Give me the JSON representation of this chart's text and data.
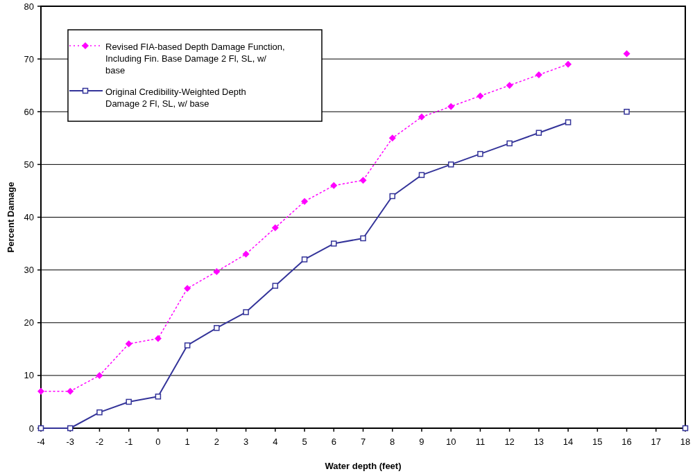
{
  "chart_data": {
    "type": "line",
    "xlabel": "Water depth (feet)",
    "ylabel": "Percent Damage",
    "x": [
      -4,
      -3,
      -2,
      -1,
      0,
      1,
      2,
      3,
      4,
      5,
      6,
      7,
      8,
      9,
      10,
      11,
      12,
      13,
      14,
      15,
      16,
      17,
      18
    ],
    "xlim": [
      -4,
      18
    ],
    "xticks": [
      -4,
      -3,
      -2,
      -1,
      0,
      1,
      2,
      3,
      4,
      5,
      6,
      7,
      8,
      9,
      10,
      11,
      12,
      13,
      14,
      15,
      16,
      17,
      18
    ],
    "ylim": [
      0,
      80
    ],
    "yticks": [
      0,
      10,
      20,
      30,
      40,
      50,
      60,
      70,
      80
    ],
    "grid": "y",
    "legend": "top left",
    "series": [
      {
        "name": "Revised FIA-based Depth Damage Function, Including Fin. Base Damage 2 Fl, SL, w/ base",
        "color": "#ff00ff",
        "marker": "diamond",
        "line_style": "dotted",
        "values": [
          7,
          7,
          10,
          16,
          17,
          26.5,
          29.7,
          33,
          38,
          43,
          46,
          47,
          55,
          59,
          61,
          63,
          65,
          67,
          69,
          null,
          71,
          null,
          null
        ]
      },
      {
        "name": "Original Credibility-Weighted Depth Damage 2 Fl, SL, w/ base",
        "color": "#333399",
        "marker": "square",
        "line_style": "solid",
        "values": [
          0,
          0,
          3,
          5,
          6,
          15.7,
          19,
          22,
          27,
          32,
          35,
          36,
          44,
          48,
          50,
          52,
          54,
          56,
          58,
          null,
          60,
          null,
          0
        ]
      }
    ]
  }
}
